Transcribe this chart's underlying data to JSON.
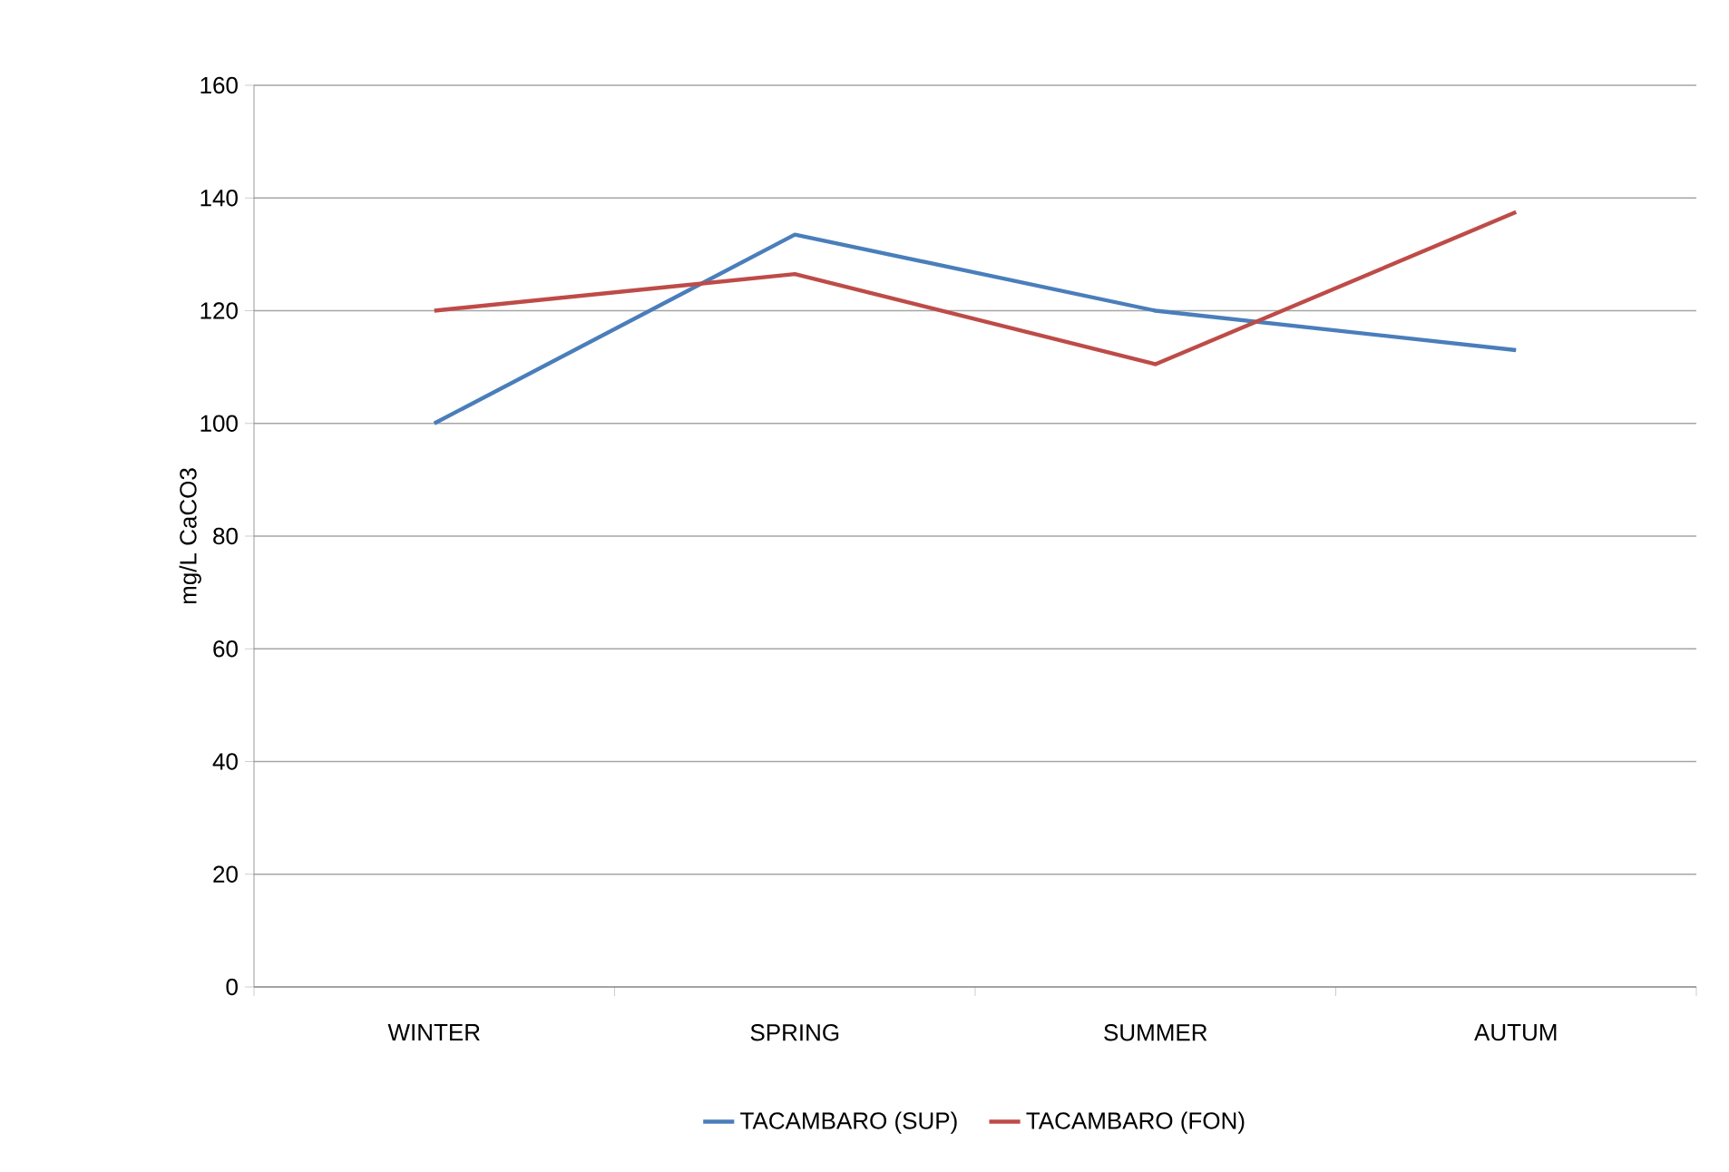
{
  "chart_data": {
    "type": "line",
    "ylabel": "mg/L CaCO3",
    "categories": [
      "WINTER",
      "SPRING",
      "SUMMER",
      "AUTUM"
    ],
    "series": [
      {
        "name": "TACAMBARO (SUP)",
        "color": "#4a7ebb",
        "values": [
          100,
          133.5,
          120,
          113
        ]
      },
      {
        "name": "TACAMBARO (FON)",
        "color": "#be4b48",
        "values": [
          120,
          126.5,
          110.5,
          137.5
        ]
      }
    ],
    "ylim": [
      0,
      160
    ],
    "yticks": [
      0,
      20,
      40,
      60,
      80,
      100,
      120,
      140,
      160
    ],
    "grid": "y",
    "legend": "bottom",
    "marker": "none",
    "line_style": "solid"
  }
}
